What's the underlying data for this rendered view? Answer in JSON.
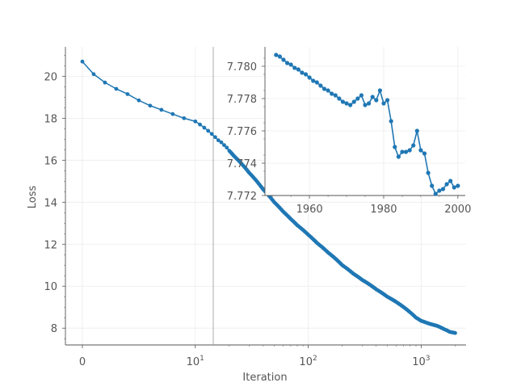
{
  "chart_data": [
    {
      "type": "line",
      "role": "main",
      "xlabel": "Iteration",
      "ylabel": "Loss",
      "xscale": "symlog",
      "xlim": [
        -1.5,
        2500
      ],
      "ylim": [
        7.2,
        21.4
      ],
      "grid": true,
      "color": "#1f77b4",
      "marker": "circle",
      "x_ticks": [
        {
          "value": 0,
          "base": "0",
          "exp": ""
        },
        {
          "value": 10,
          "base": "10",
          "exp": "1"
        },
        {
          "value": 100,
          "base": "10",
          "exp": "2"
        },
        {
          "value": 1000,
          "base": "10",
          "exp": "3"
        }
      ],
      "y_ticks": [
        "8",
        "10",
        "12",
        "14",
        "16",
        "18",
        "20"
      ],
      "series": [
        {
          "x": [
            0,
            1,
            2,
            3,
            4,
            5,
            6,
            7,
            8,
            9,
            10,
            11,
            12,
            13,
            14,
            15,
            16,
            17,
            18,
            19,
            20,
            22,
            25,
            30,
            40,
            50,
            60,
            70,
            80,
            100,
            120,
            150,
            200,
            250,
            300,
            400,
            500,
            600,
            700,
            800,
            900,
            1000,
            1100,
            1200,
            1400,
            1600,
            1800,
            2000
          ],
          "y": [
            20.7,
            20.1,
            19.7,
            19.4,
            19.15,
            18.85,
            18.6,
            18.4,
            18.2,
            18.0,
            17.85,
            17.7,
            17.55,
            17.4,
            17.25,
            17.1,
            16.95,
            16.85,
            16.72,
            16.6,
            16.45,
            16.2,
            15.9,
            15.4,
            14.6,
            14.0,
            13.55,
            13.2,
            12.9,
            12.45,
            12.05,
            11.6,
            11.0,
            10.6,
            10.3,
            9.85,
            9.5,
            9.25,
            9.0,
            8.75,
            8.5,
            8.35,
            8.27,
            8.2,
            8.1,
            7.95,
            7.82,
            7.77
          ]
        }
      ]
    },
    {
      "type": "line",
      "role": "inset",
      "xlabel": "",
      "ylabel": "",
      "xlim": [
        1948,
        2002
      ],
      "ylim": [
        7.772,
        7.7812
      ],
      "grid": true,
      "color": "#1f77b4",
      "marker": "circle",
      "x_ticks": [
        "1960",
        "1980",
        "2000"
      ],
      "y_ticks": [
        "7.772",
        "7.774",
        "7.776",
        "7.778",
        "7.780"
      ],
      "series": [
        {
          "x": [
            1951,
            1952,
            1953,
            1954,
            1955,
            1956,
            1957,
            1958,
            1959,
            1960,
            1961,
            1962,
            1963,
            1964,
            1965,
            1966,
            1967,
            1968,
            1969,
            1970,
            1971,
            1972,
            1973,
            1974,
            1975,
            1976,
            1977,
            1978,
            1979,
            1980,
            1981,
            1982,
            1983,
            1984,
            1985,
            1986,
            1987,
            1988,
            1989,
            1990,
            1991,
            1992,
            1993,
            1994,
            1995,
            1996,
            1997,
            1998,
            1999,
            2000
          ],
          "y": [
            7.7807,
            7.7806,
            7.7804,
            7.7802,
            7.7801,
            7.7799,
            7.7798,
            7.7796,
            7.7795,
            7.7793,
            7.7791,
            7.779,
            7.7788,
            7.7786,
            7.7785,
            7.7783,
            7.7782,
            7.778,
            7.7778,
            7.7777,
            7.7776,
            7.7778,
            7.778,
            7.7782,
            7.7776,
            7.7777,
            7.7781,
            7.7779,
            7.7785,
            7.7777,
            7.7779,
            7.7766,
            7.775,
            7.7744,
            7.7747,
            7.7747,
            7.7748,
            7.7751,
            7.776,
            7.7748,
            7.7746,
            7.7734,
            7.7726,
            7.7721,
            7.7723,
            7.7724,
            7.7727,
            7.7729,
            7.7725,
            7.7726
          ]
        }
      ]
    }
  ]
}
